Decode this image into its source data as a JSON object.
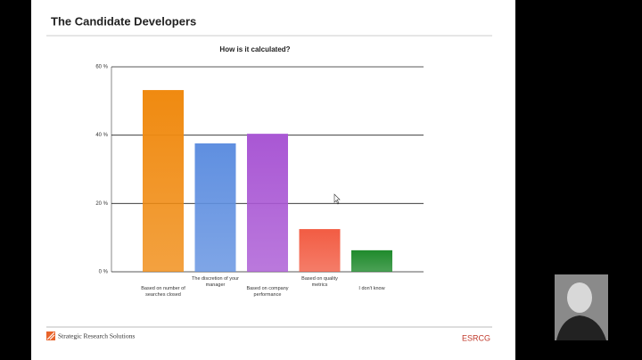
{
  "header": {
    "title": "The Candidate Developers"
  },
  "footer": {
    "company": "Strategic Research Solutions",
    "brand": "ESRCG"
  },
  "chart_data": {
    "type": "bar",
    "title": "How is it calculated?",
    "categories": [
      "Based on number of searches closed",
      "The discretion of your manager",
      "Based on company performance",
      "Based on quality metrics",
      "I don't know"
    ],
    "values": [
      53.2,
      37.6,
      40.4,
      12.5,
      6.3
    ],
    "colors": [
      "#f08a10",
      "#5f8fe0",
      "#a957d4",
      "#f25c43",
      "#1f8a2c"
    ],
    "ylim": [
      0,
      60
    ],
    "yticks": [
      {
        "value": 0,
        "label": "0 %"
      },
      {
        "value": 20,
        "label": "20 %"
      },
      {
        "value": 40,
        "label": "40 %"
      },
      {
        "value": 60,
        "label": "60 %"
      }
    ],
    "grid": true
  }
}
